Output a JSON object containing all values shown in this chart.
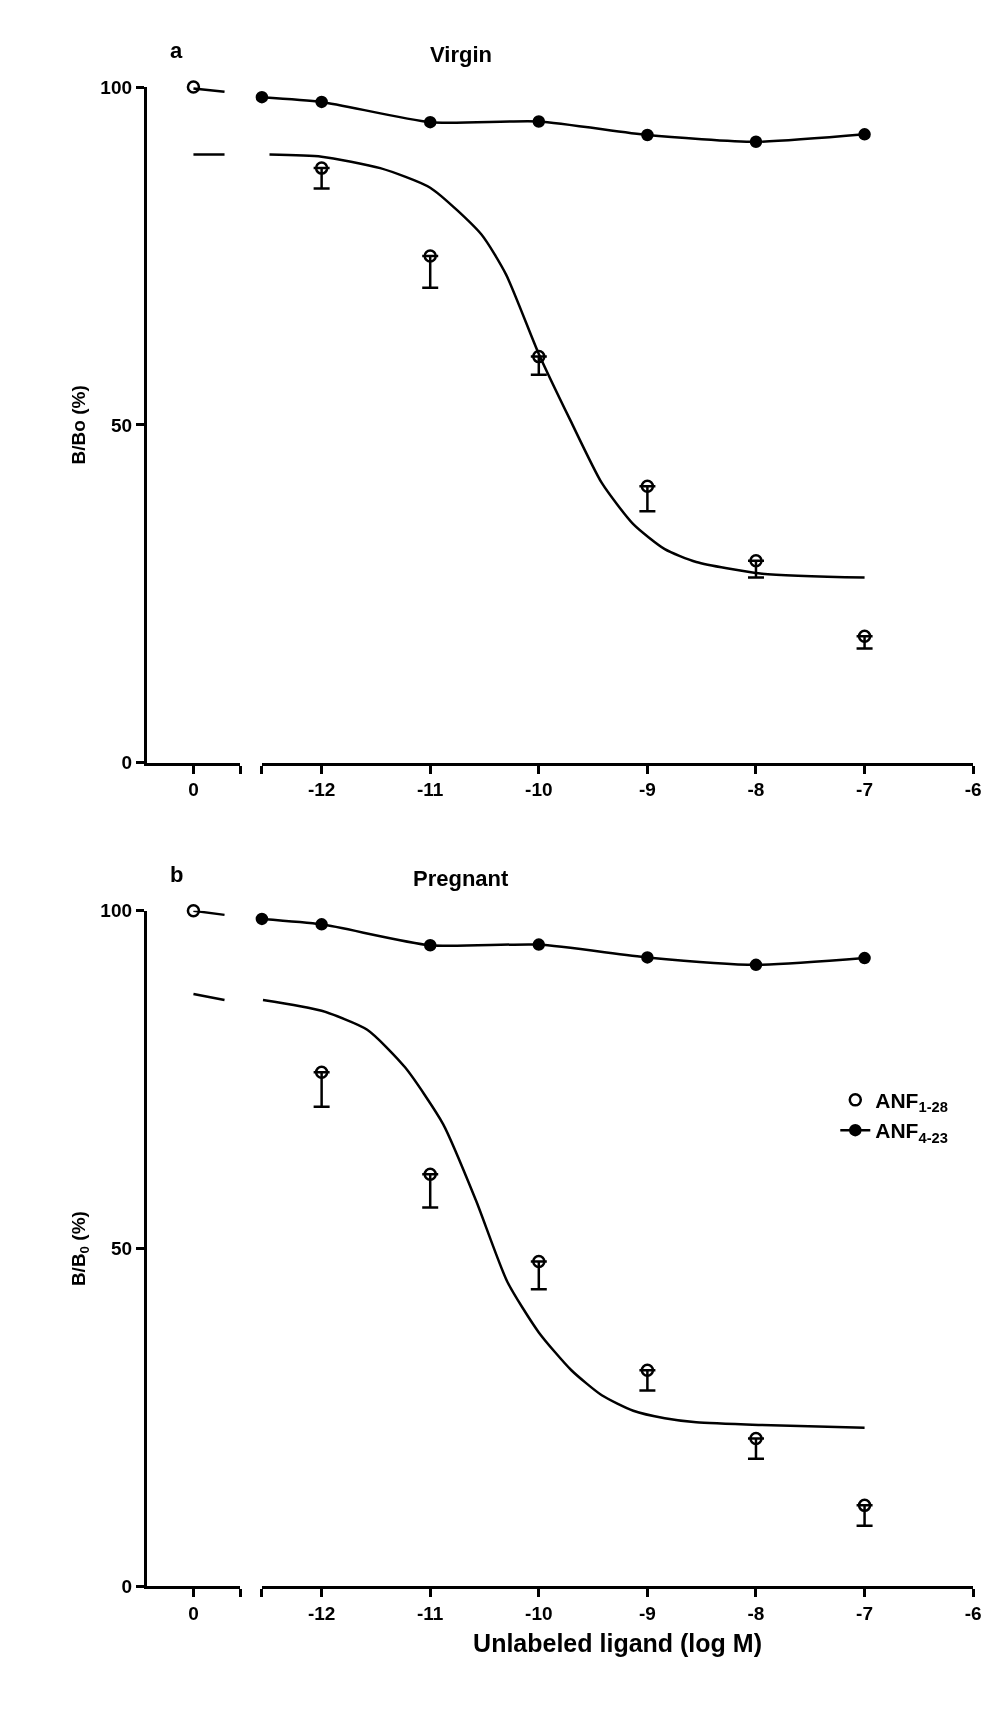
{
  "chart_data": [
    {
      "type": "line",
      "ylabel": "B/Bo (%)",
      "annotations": [
        "a"
      ],
      "categories": [
        null,
        "0",
        null
      ],
      "ylim": [
        0,
        100
      ],
      "yticks": [
        0,
        50,
        100
      ],
      "series": [
        {
          "type": "scatter",
          "color": "#000000",
          "marker": "circle",
          "values": [
            null,
            100,
            null
          ]
        },
        {
          "color": "#000000",
          "values": [
            null,
            99.8,
            99.3
          ]
        },
        {
          "color": "#000000",
          "values": [
            null,
            90,
            90
          ]
        }
      ]
    },
    {
      "type": "line",
      "title": "Virgin",
      "tick_labels": "x",
      "xlim": [
        -12.55,
        -6
      ],
      "xticks": [
        {
          "value": -12.55,
          "label": null
        },
        -12,
        -11,
        -10,
        -9,
        -8,
        -7,
        -6
      ],
      "ylim": [
        0,
        100
      ],
      "series": [
        {
          "color": "#000000",
          "x": [
            -12.48,
            -12,
            -11.46,
            -11,
            -10.53,
            -10.3,
            -10,
            -9.71,
            -9.42,
            -9.13,
            -8.84,
            -8.55,
            -7.96,
            -7
          ],
          "values": [
            90,
            89.7,
            88,
            85.1,
            78.2,
            72.2,
            60.5,
            50.7,
            41.4,
            35.3,
            31.6,
            29.7,
            28,
            27.4
          ]
        },
        {
          "type": "scatter",
          "color": "#000000",
          "marker": "circle",
          "x": [
            -12,
            -11,
            -10,
            -9,
            -8,
            -7
          ],
          "values": [
            88,
            75,
            60.1,
            40.9,
            29.9,
            18.7
          ],
          "errors": [
            [
              85,
              88
            ],
            [
              70.3,
              75
            ],
            [
              57.4,
              60.1
            ],
            [
              37.2,
              40.9
            ],
            [
              27.4,
              29.9
            ],
            [
              16.9,
              18.7
            ]
          ]
        },
        {
          "color": "#000000",
          "marker": "circle",
          "x": [
            -12.55,
            -12,
            -11,
            -10,
            -9,
            -8,
            -7
          ],
          "values": [
            98.5,
            97.8,
            94.8,
            94.9,
            92.9,
            91.9,
            93
          ]
        }
      ]
    },
    {
      "type": "line",
      "ylabel": "B/B$_{0}$ (%)",
      "annotations": [
        "b"
      ],
      "categories": [
        null,
        "0",
        null
      ],
      "ylim": [
        0,
        100
      ],
      "yticks": [
        0,
        50,
        100
      ],
      "series": [
        {
          "type": "scatter",
          "color": "#000000",
          "marker": "circle",
          "values": [
            null,
            100,
            null
          ]
        },
        {
          "color": "#000000",
          "values": [
            null,
            100,
            99.4
          ]
        },
        {
          "color": "#000000",
          "values": [
            null,
            87.7,
            86.8
          ]
        }
      ]
    },
    {
      "type": "line",
      "title": "Pregnant",
      "xlabel": "Unlabeled ligand (log M)",
      "tick_labels": "x",
      "legend": "right",
      "xlim": [
        -12.55,
        -6
      ],
      "xticks": [
        {
          "value": -12.55,
          "label": null
        },
        -12,
        -11,
        -10,
        -9,
        -8,
        -7,
        -6
      ],
      "ylim": [
        0,
        100
      ],
      "series": [
        {
          "color": "#000000",
          "x": [
            -12.54,
            -12,
            -11.58,
            -11.23,
            -10.88,
            -10.58,
            -10.29,
            -10,
            -9.7,
            -9.42,
            -9.13,
            -8.84,
            -8.55,
            -7.96,
            -7
          ],
          "values": [
            86.8,
            85.2,
            82.4,
            76.8,
            68.4,
            57.2,
            45.1,
            37.6,
            32,
            28.3,
            26,
            24.9,
            24.3,
            23.9,
            23.5
          ]
        },
        {
          "name": "ANF$_{1-28}$",
          "type": "scatter",
          "color": "#000000",
          "marker": "circle",
          "x": [
            -12,
            -11,
            -10,
            -9,
            -8,
            -7
          ],
          "values": [
            76.1,
            61,
            48.1,
            32,
            21.9,
            12
          ],
          "errors": [
            [
              71,
              76.1
            ],
            [
              56.1,
              61
            ],
            [
              44,
              48.1
            ],
            [
              29,
              32
            ],
            [
              18.9,
              21.9
            ],
            [
              9,
              12
            ]
          ]
        },
        {
          "name": "ANF$_{4-23}$",
          "color": "#000000",
          "marker": "circle",
          "x": [
            -12.55,
            -12,
            -11,
            -10,
            -9,
            -8,
            -7
          ],
          "values": [
            98.8,
            98,
            94.9,
            95,
            93.1,
            92,
            93
          ]
        }
      ]
    }
  ]
}
